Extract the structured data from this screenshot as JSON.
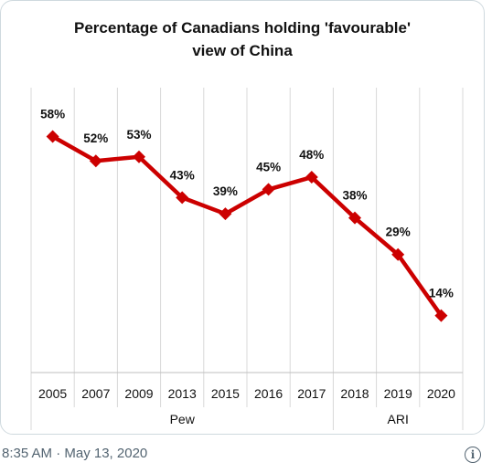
{
  "chart_data": {
    "type": "line",
    "title_line1": "Percentage of Canadians holding 'favourable'",
    "title_line2": "view of China",
    "categories": [
      "2005",
      "2007",
      "2009",
      "2013",
      "2015",
      "2016",
      "2017",
      "2018",
      "2019",
      "2020"
    ],
    "values": [
      58,
      52,
      53,
      43,
      39,
      45,
      48,
      38,
      29,
      14
    ],
    "data_labels": [
      "58%",
      "52%",
      "53%",
      "43%",
      "39%",
      "45%",
      "48%",
      "38%",
      "29%",
      "14%"
    ],
    "groups": [
      {
        "label": "Pew",
        "count": 7
      },
      {
        "label": "ARI",
        "count": 3
      }
    ],
    "ylim": [
      0,
      70
    ],
    "color": "#cc0000",
    "grid": "vertical"
  },
  "tweet": {
    "timestamp": "8:35 AM · May 13, 2020",
    "info_icon": "i"
  }
}
